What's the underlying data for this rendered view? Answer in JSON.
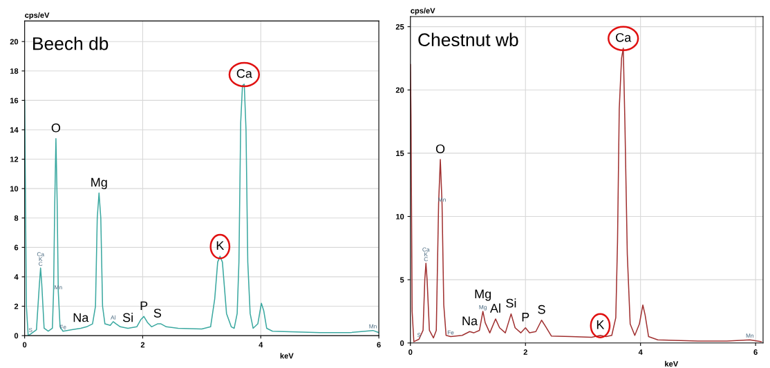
{
  "chart_data": [
    {
      "type": "line",
      "title": "Beech db",
      "ylabel": "cps/eV",
      "xlabel": "keV",
      "xlim": [
        0,
        6
      ],
      "xticks": [
        0,
        2,
        4,
        6
      ],
      "ylim": [
        0,
        21.4
      ],
      "yticks": [
        0,
        2,
        4,
        6,
        8,
        10,
        12,
        14,
        16,
        18,
        20
      ],
      "grid": true,
      "marker": "none",
      "line_style": "solid",
      "series": [
        {
          "color": "#3aa8a0",
          "x": [
            0,
            0.03,
            0.06,
            0.1,
            0.2,
            0.25,
            0.27,
            0.29,
            0.33,
            0.4,
            0.47,
            0.49,
            0.51,
            0.53,
            0.55,
            0.57,
            0.6,
            0.65,
            0.8,
            0.95,
            1.05,
            1.15,
            1.2,
            1.23,
            1.26,
            1.29,
            1.32,
            1.36,
            1.45,
            1.5,
            1.55,
            1.62,
            1.75,
            1.9,
            1.97,
            2.02,
            2.08,
            2.15,
            2.25,
            2.31,
            2.4,
            2.6,
            3.0,
            3.15,
            3.22,
            3.27,
            3.31,
            3.35,
            3.42,
            3.5,
            3.55,
            3.6,
            3.63,
            3.66,
            3.69,
            3.72,
            3.75,
            3.78,
            3.82,
            3.87,
            3.95,
            4.01,
            4.05,
            4.1,
            4.2,
            5.0,
            5.5,
            5.9,
            6.0
          ],
          "values": [
            16,
            2,
            0,
            0.1,
            0.4,
            3.5,
            4.6,
            3.5,
            0.5,
            0.3,
            0.5,
            3,
            9,
            13.4,
            9.3,
            3,
            0.6,
            0.3,
            0.4,
            0.5,
            0.6,
            0.8,
            2,
            8,
            9.7,
            8,
            2,
            0.8,
            0.7,
            0.95,
            0.8,
            0.6,
            0.5,
            0.6,
            1.1,
            1.3,
            0.9,
            0.6,
            0.8,
            0.8,
            0.6,
            0.5,
            0.45,
            0.6,
            2.5,
            5.0,
            5.4,
            5.0,
            1.5,
            0.6,
            0.5,
            1.5,
            5,
            14.5,
            17,
            17.1,
            14,
            5,
            1.5,
            0.5,
            0.8,
            2.2,
            1.7,
            0.5,
            0.3,
            0.2,
            0.2,
            0.35,
            0.2
          ]
        }
      ],
      "annotations": [
        {
          "text": "O",
          "x": 0.53,
          "y": 13.4
        },
        {
          "text": "Mg",
          "x": 1.26,
          "y": 9.7
        },
        {
          "text": "Na",
          "x": 0.95,
          "y": 0.5
        },
        {
          "text": "Si",
          "x": 1.75,
          "y": 0.5
        },
        {
          "text": "P",
          "x": 2.02,
          "y": 1.3
        },
        {
          "text": "S",
          "x": 2.25,
          "y": 0.8
        },
        {
          "text": "K",
          "x": 3.31,
          "y": 5.4
        },
        {
          "text": "Ca",
          "x": 3.72,
          "y": 17.1
        },
        {
          "text": "C",
          "x": 0.27,
          "y": 4.6
        },
        {
          "text": "K",
          "x": 0.27,
          "y": 4.6
        },
        {
          "text": "Ca",
          "x": 0.27,
          "y": 4.6
        },
        {
          "text": "Mn",
          "x": 0.57,
          "y": 3
        },
        {
          "text": "Fe",
          "x": 0.65,
          "y": 0.3
        },
        {
          "text": "S",
          "x": 0.1,
          "y": 0.1
        },
        {
          "text": "Al",
          "x": 1.5,
          "y": 0.95
        },
        {
          "text": "Mn",
          "x": 5.9,
          "y": 0.35
        }
      ]
    },
    {
      "type": "line",
      "title": "Chestnut wb",
      "ylabel": "cps/eV",
      "xlabel": "keV",
      "xlim": [
        0,
        6.13
      ],
      "xticks": [
        0,
        2,
        4,
        6
      ],
      "ylim": [
        0,
        25.8
      ],
      "yticks": [
        0,
        5,
        10,
        15,
        20,
        25
      ],
      "grid": true,
      "marker": "none",
      "line_style": "solid",
      "series": [
        {
          "color": "#a03030",
          "x": [
            0,
            0.01,
            0.03,
            0.06,
            0.15,
            0.22,
            0.25,
            0.27,
            0.29,
            0.33,
            0.4,
            0.45,
            0.49,
            0.52,
            0.55,
            0.58,
            0.62,
            0.7,
            0.9,
            1.03,
            1.1,
            1.2,
            1.26,
            1.3,
            1.38,
            1.48,
            1.55,
            1.65,
            1.75,
            1.82,
            1.92,
            2.0,
            2.07,
            2.18,
            2.28,
            2.35,
            2.45,
            2.8,
            3.15,
            3.3,
            3.4,
            3.5,
            3.57,
            3.6,
            3.63,
            3.67,
            3.7,
            3.73,
            3.77,
            3.82,
            3.9,
            3.98,
            4.04,
            4.08,
            4.14,
            4.3,
            5.0,
            5.5,
            5.9,
            6.1
          ],
          "values": [
            22,
            18,
            2.5,
            0.1,
            0.3,
            1,
            5,
            6.3,
            5,
            1,
            0.4,
            1,
            11,
            14.5,
            11,
            3,
            0.6,
            0.5,
            0.6,
            0.9,
            0.8,
            1,
            2.5,
            1.6,
            0.8,
            1.9,
            1.2,
            0.8,
            2.3,
            1.2,
            0.8,
            1.2,
            0.8,
            0.9,
            1.8,
            1.3,
            0.55,
            0.5,
            0.45,
            0.6,
            0.5,
            0.6,
            2,
            8,
            18.5,
            22.5,
            23.3,
            17,
            7,
            1.5,
            0.6,
            1.5,
            3.0,
            2.2,
            0.5,
            0.25,
            0.15,
            0.15,
            0.25,
            0.1
          ]
        }
      ],
      "annotations": [
        {
          "text": "O",
          "x": 0.52,
          "y": 14.5
        },
        {
          "text": "Mg",
          "x": 1.26,
          "y": 2.5
        },
        {
          "text": "Al",
          "x": 1.48,
          "y": 1.9
        },
        {
          "text": "Si",
          "x": 1.75,
          "y": 2.3
        },
        {
          "text": "Na",
          "x": 1.03,
          "y": 0.9
        },
        {
          "text": "P",
          "x": 2.0,
          "y": 1.2
        },
        {
          "text": "S",
          "x": 2.28,
          "y": 1.8
        },
        {
          "text": "K",
          "x": 3.3,
          "y": 0.6
        },
        {
          "text": "Ca",
          "x": 3.7,
          "y": 23.3
        },
        {
          "text": "C",
          "x": 0.27,
          "y": 6.3
        },
        {
          "text": "K",
          "x": 0.27,
          "y": 6.3
        },
        {
          "text": "Ca",
          "x": 0.27,
          "y": 6.3
        },
        {
          "text": "Mn",
          "x": 0.55,
          "y": 11
        },
        {
          "text": "Fe",
          "x": 0.7,
          "y": 0.5
        },
        {
          "text": "S",
          "x": 0.15,
          "y": 0.3
        },
        {
          "text": "Mg",
          "x": 1.26,
          "y": 2.5
        },
        {
          "text": "Mn",
          "x": 5.9,
          "y": 0.25
        }
      ]
    }
  ]
}
